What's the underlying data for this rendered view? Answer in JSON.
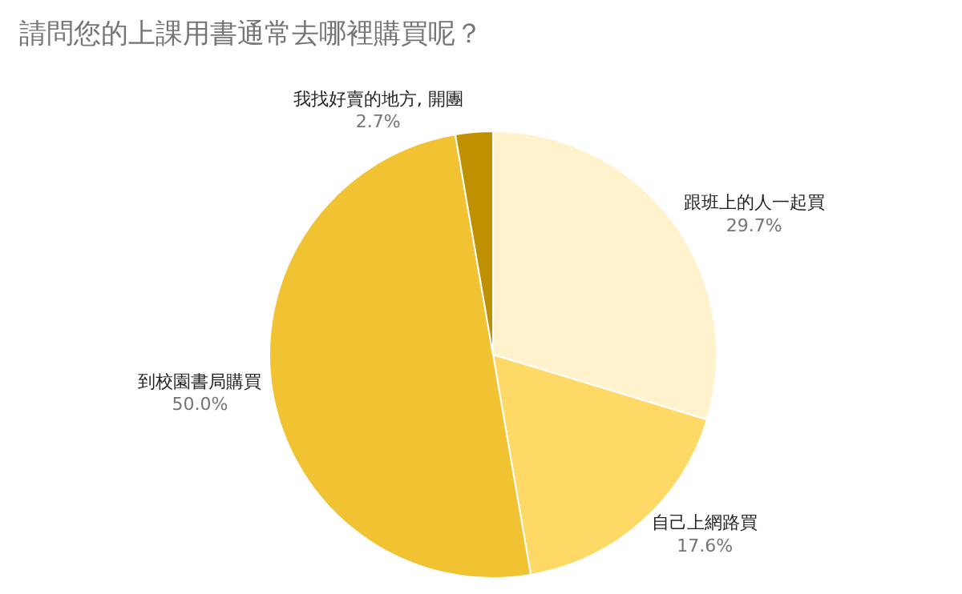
{
  "chart_data": {
    "type": "pie",
    "title": "請問您的上課用書通常去哪裡購買呢？",
    "categories": [
      "跟班上的人一起買",
      "自己上網路買",
      "到校園書局購買",
      "我找好賣的地方, 開團"
    ],
    "values": [
      29.7,
      17.6,
      50.0,
      2.7
    ],
    "value_labels": [
      "29.7%",
      "17.6%",
      "50.0%",
      "2.7%"
    ],
    "colors": [
      "#fff2cc",
      "#ffd966",
      "#f1c232",
      "#bf9000"
    ],
    "legend": false
  }
}
